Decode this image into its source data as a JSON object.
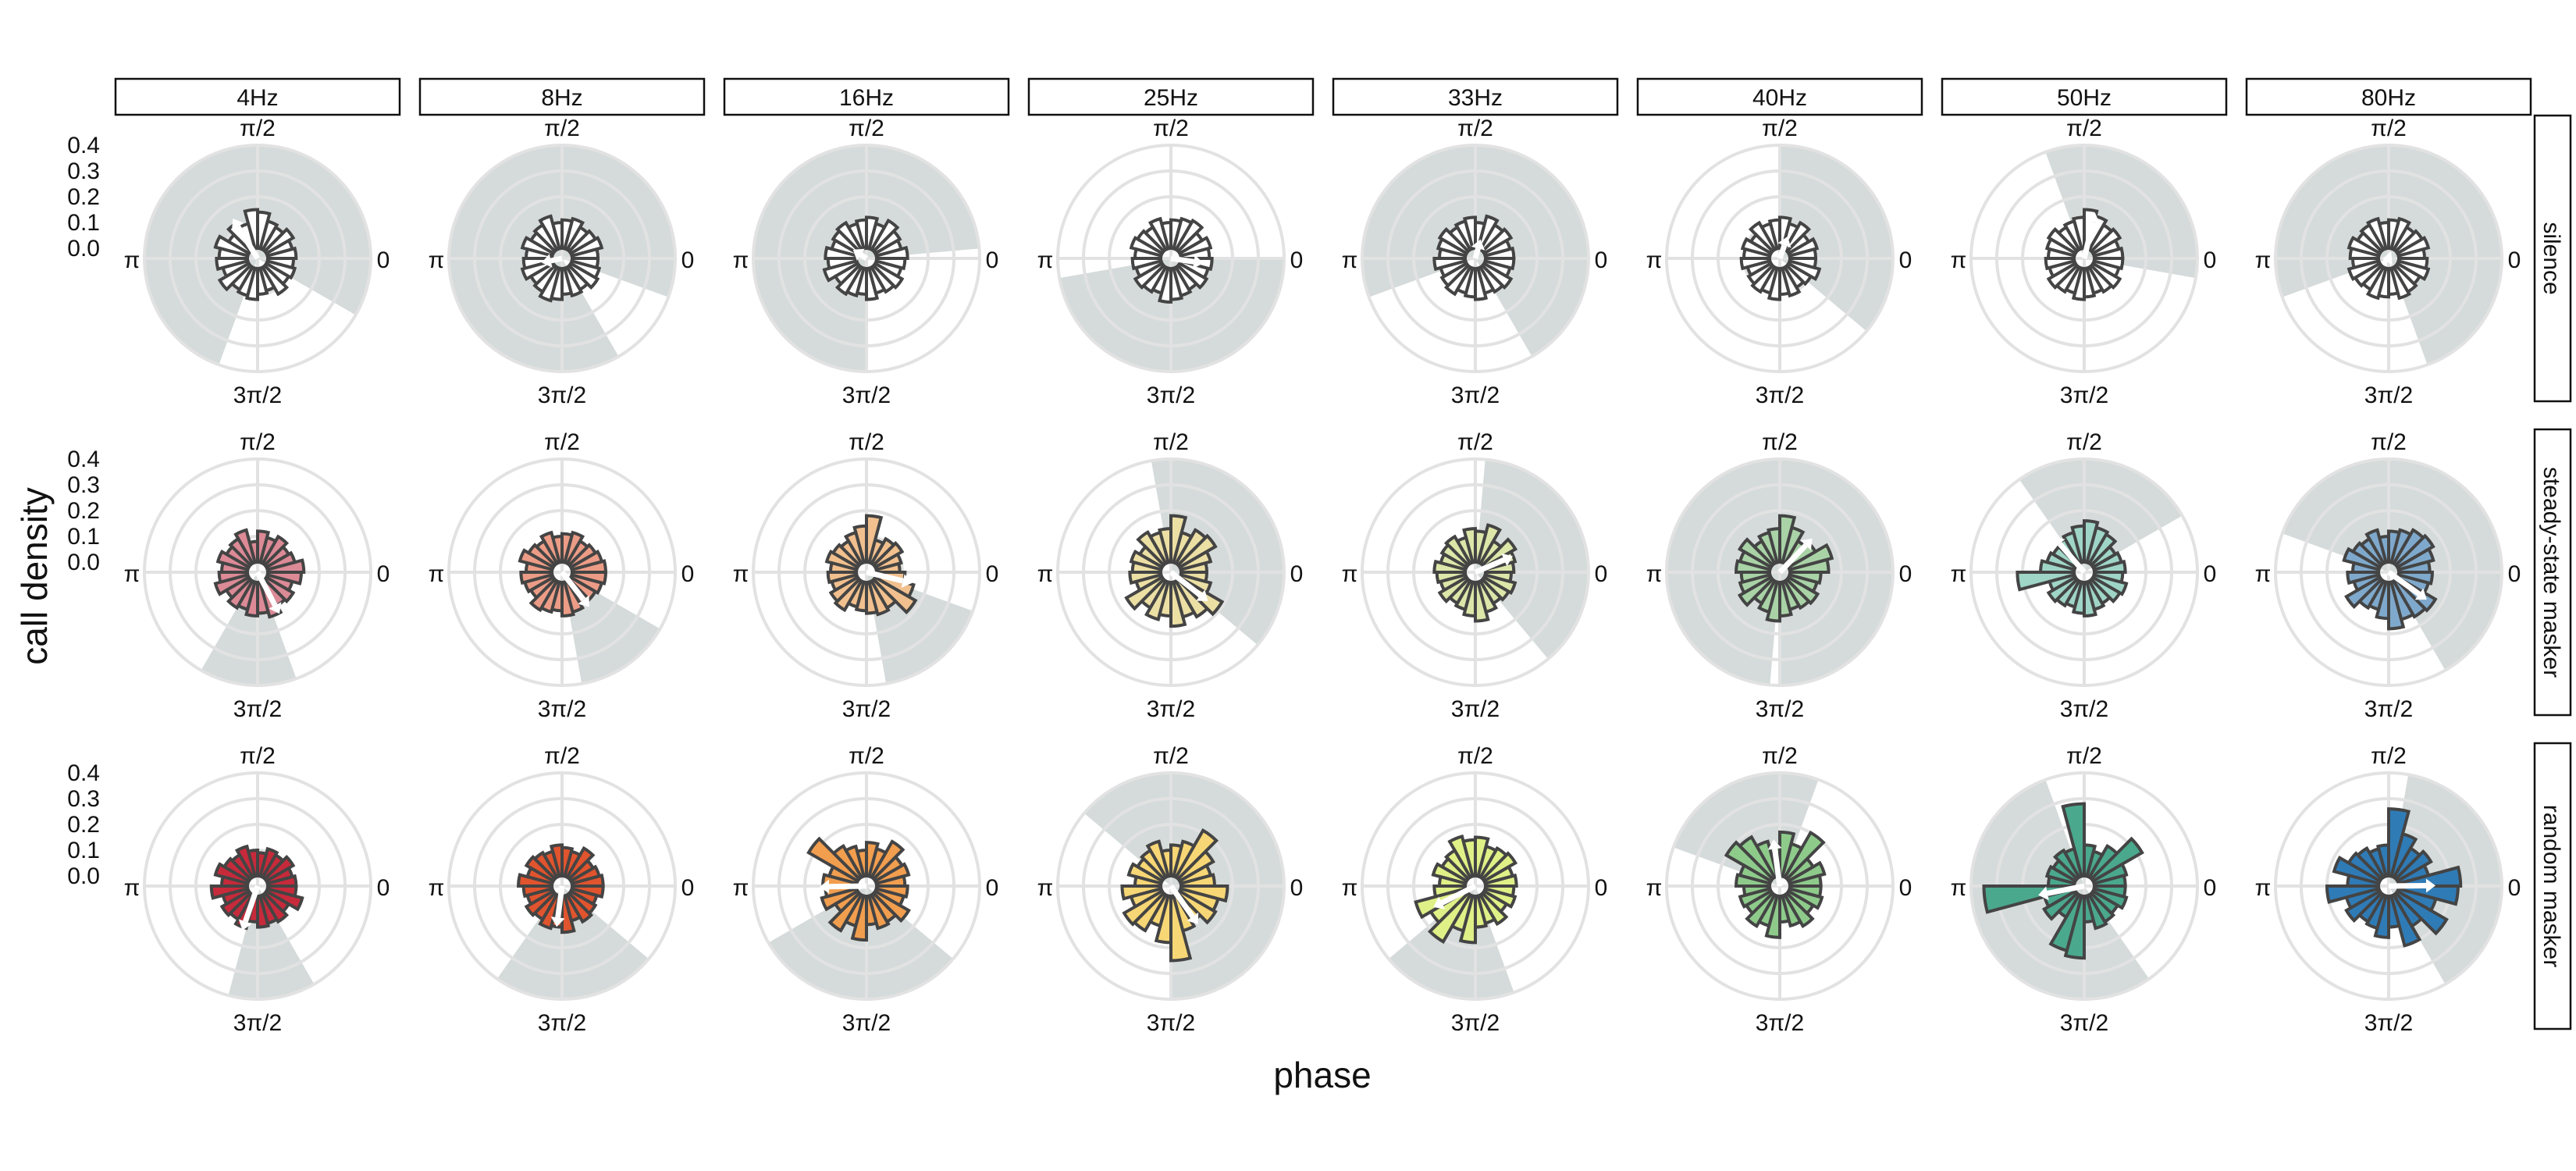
{
  "figure": {
    "xlabel": "phase",
    "ylabel": "call density",
    "columns": [
      "4Hz",
      "8Hz",
      "16Hz",
      "25Hz",
      "33Hz",
      "40Hz",
      "50Hz",
      "80Hz"
    ],
    "rows": [
      "silence",
      "steady-state masker",
      "random masker"
    ],
    "theta_tick_labels": [
      "0",
      "π/2",
      "π",
      "3π/2"
    ],
    "r_tick_labels": [
      "0.0",
      "0.1",
      "0.2",
      "0.3",
      "0.4"
    ],
    "colors": {
      "bar_edge": "#444444",
      "silence_fill": "#ffffff",
      "shade": "#d5dbda",
      "grid": "#e2e2e2",
      "vector": "#ffffff",
      "steady_state_masker": [
        "#dc8a96",
        "#ec9c86",
        "#f1c08e",
        "#ecdfa4",
        "#dde6a9",
        "#a9d3a6",
        "#9fd5c6",
        "#7fa9cc"
      ],
      "random_masker": [
        "#c72a3b",
        "#e0542e",
        "#f19e4f",
        "#f7d675",
        "#dff087",
        "#8ecb8b",
        "#4aa88d",
        "#2f7bb6"
      ]
    }
  },
  "chart_data": {
    "type": "polar-histogram",
    "bins": 24,
    "rlim": [
      0,
      0.4
    ],
    "rticks": [
      0.0,
      0.1,
      0.2,
      0.3,
      0.4
    ],
    "grid": true,
    "note_units": "bar values are call density per phase bin; shaded wedge spans are phase angles in degrees (0 = right, counter-clockwise)",
    "panels": [
      {
        "row": "silence",
        "col": "4Hz",
        "values": [
          0.11,
          0.1,
          0.12,
          0.1,
          0.11,
          0.14,
          0.15,
          0.1,
          0.12,
          0.09,
          0.13,
          0.11,
          0.12,
          0.1,
          0.13,
          0.1,
          0.11,
          0.12,
          0.1,
          0.09,
          0.12,
          0.1,
          0.11,
          0.1
        ],
        "shade": [
          -30,
          250
        ]
      },
      {
        "row": "silence",
        "col": "8Hz",
        "values": [
          0.1,
          0.12,
          0.11,
          0.1,
          0.12,
          0.11,
          0.1,
          0.13,
          0.11,
          0.1,
          0.12,
          0.1,
          0.11,
          0.12,
          0.1,
          0.11,
          0.13,
          0.12,
          0.1,
          0.11,
          0.1,
          0.12,
          0.11,
          0.1
        ],
        "shade": [
          -20,
          300
        ]
      },
      {
        "row": "silence",
        "col": "16Hz",
        "values": [
          0.12,
          0.1,
          0.11,
          0.13,
          0.1,
          0.12,
          0.11,
          0.1,
          0.12,
          0.11,
          0.1,
          0.12,
          0.11,
          0.13,
          0.1,
          0.12,
          0.11,
          0.1,
          0.12,
          0.1,
          0.11,
          0.12,
          0.1,
          0.11
        ],
        "shade": [
          5,
          270
        ]
      },
      {
        "row": "silence",
        "col": "25Hz",
        "values": [
          0.11,
          0.12,
          0.1,
          0.13,
          0.12,
          0.11,
          0.1,
          0.12,
          0.1,
          0.11,
          0.12,
          0.1,
          0.11,
          0.1,
          0.12,
          0.11,
          0.1,
          0.13,
          0.12,
          0.11,
          0.1,
          0.12,
          0.11,
          0.12
        ],
        "shade": [
          190,
          360
        ]
      },
      {
        "row": "silence",
        "col": "33Hz",
        "values": [
          0.11,
          0.1,
          0.12,
          0.11,
          0.13,
          0.1,
          0.12,
          0.11,
          0.1,
          0.12,
          0.11,
          0.1,
          0.12,
          0.1,
          0.11,
          0.12,
          0.1,
          0.11,
          0.12,
          0.1,
          0.11,
          0.12,
          0.1,
          0.11
        ],
        "shade": [
          -60,
          200
        ]
      },
      {
        "row": "silence",
        "col": "40Hz",
        "values": [
          0.1,
          0.11,
          0.09,
          0.12,
          0.1,
          0.12,
          0.11,
          0.1,
          0.12,
          0.09,
          0.11,
          0.1,
          0.11,
          0.09,
          0.1,
          0.11,
          0.1,
          0.12,
          0.1,
          0.11,
          0.09,
          0.1,
          0.12,
          0.1
        ],
        "shade": [
          -40,
          90
        ]
      },
      {
        "row": "silence",
        "col": "50Hz",
        "values": [
          0.11,
          0.1,
          0.12,
          0.11,
          0.13,
          0.15,
          0.12,
          0.11,
          0.1,
          0.12,
          0.11,
          0.1,
          0.11,
          0.1,
          0.12,
          0.11,
          0.1,
          0.12,
          0.11,
          0.1,
          0.11,
          0.12,
          0.1,
          0.11
        ],
        "shade": [
          -10,
          110
        ]
      },
      {
        "row": "silence",
        "col": "80Hz",
        "values": [
          0.1,
          0.12,
          0.11,
          0.1,
          0.12,
          0.11,
          0.1,
          0.12,
          0.11,
          0.1,
          0.12,
          0.11,
          0.1,
          0.12,
          0.11,
          0.1,
          0.12,
          0.11,
          0.1,
          0.12,
          0.11,
          0.1,
          0.12,
          0.11
        ],
        "shade": [
          -70,
          200
        ]
      },
      {
        "row": "steady-state masker",
        "col": "4Hz",
        "values": [
          0.14,
          0.11,
          0.1,
          0.12,
          0.1,
          0.12,
          0.08,
          0.13,
          0.11,
          0.1,
          0.12,
          0.1,
          0.11,
          0.13,
          0.1,
          0.12,
          0.11,
          0.13,
          0.12,
          0.14,
          0.11,
          0.12,
          0.1,
          0.13
        ],
        "shade": [
          240,
          290
        ]
      },
      {
        "row": "steady-state masker",
        "col": "8Hz",
        "values": [
          0.13,
          0.12,
          0.11,
          0.1,
          0.12,
          0.11,
          0.1,
          0.12,
          0.1,
          0.11,
          0.13,
          0.1,
          0.12,
          0.11,
          0.1,
          0.13,
          0.12,
          0.11,
          0.13,
          0.12,
          0.1,
          0.11,
          0.12,
          0.13
        ],
        "shade": [
          280,
          330
        ]
      },
      {
        "row": "steady-state masker",
        "col": "16Hz",
        "values": [
          0.09,
          0.1,
          0.12,
          0.11,
          0.09,
          0.18,
          0.14,
          0.12,
          0.1,
          0.11,
          0.12,
          0.1,
          0.11,
          0.1,
          0.12,
          0.13,
          0.1,
          0.11,
          0.12,
          0.13,
          0.12,
          0.18,
          0.15,
          0.11
        ],
        "shade": [
          280,
          340
        ]
      },
      {
        "row": "steady-state masker",
        "col": "25Hz",
        "values": [
          0.1,
          0.12,
          0.16,
          0.15,
          0.12,
          0.18,
          0.13,
          0.12,
          0.14,
          0.1,
          0.12,
          0.11,
          0.12,
          0.1,
          0.16,
          0.12,
          0.15,
          0.13,
          0.17,
          0.14,
          0.16,
          0.19,
          0.12,
          0.1
        ],
        "shade": [
          -40,
          100
        ]
      },
      {
        "row": "steady-state masker",
        "col": "33Hz",
        "values": [
          0.11,
          0.12,
          0.14,
          0.1,
          0.15,
          0.12,
          0.13,
          0.1,
          0.12,
          0.11,
          0.1,
          0.12,
          0.11,
          0.1,
          0.12,
          0.1,
          0.11,
          0.13,
          0.15,
          0.12,
          0.1,
          0.11,
          0.12,
          0.1
        ],
        "shade": [
          -50,
          85
        ]
      },
      {
        "row": "steady-state masker",
        "col": "40Hz",
        "values": [
          0.15,
          0.17,
          0.12,
          0.1,
          0.14,
          0.18,
          0.13,
          0.12,
          0.1,
          0.14,
          0.12,
          0.13,
          0.11,
          0.12,
          0.14,
          0.1,
          0.12,
          0.15,
          0.13,
          0.11,
          0.12,
          0.13,
          0.11,
          0.12
        ],
        "shade": [
          -90,
          265
        ]
      },
      {
        "row": "steady-state masker",
        "col": "50Hz",
        "values": [
          0.12,
          0.11,
          0.1,
          0.13,
          0.14,
          0.16,
          0.14,
          0.12,
          0.11,
          0.1,
          0.11,
          0.13,
          0.22,
          0.1,
          0.12,
          0.11,
          0.1,
          0.12,
          0.13,
          0.11,
          0.1,
          0.12,
          0.13,
          0.11
        ],
        "shade": [
          30,
          125
        ]
      },
      {
        "row": "steady-state masker",
        "col": "80Hz",
        "values": [
          0.12,
          0.14,
          0.16,
          0.15,
          0.13,
          0.12,
          0.1,
          0.13,
          0.11,
          0.12,
          0.14,
          0.1,
          0.12,
          0.1,
          0.15,
          0.12,
          0.11,
          0.14,
          0.18,
          0.15,
          0.16,
          0.17,
          0.12,
          0.13
        ],
        "shade": [
          -60,
          160
        ]
      },
      {
        "row": "random masker",
        "col": "4Hz",
        "values": [
          0.11,
          0.1,
          0.12,
          0.1,
          0.11,
          0.09,
          0.1,
          0.12,
          0.1,
          0.11,
          0.13,
          0.1,
          0.14,
          0.1,
          0.12,
          0.11,
          0.13,
          0.1,
          0.12,
          0.11,
          0.12,
          0.1,
          0.14,
          0.11
        ],
        "shade": [
          255,
          300
        ]
      },
      {
        "row": "random masker",
        "col": "8Hz",
        "values": [
          0.12,
          0.11,
          0.1,
          0.13,
          0.1,
          0.11,
          0.12,
          0.1,
          0.11,
          0.12,
          0.1,
          0.13,
          0.11,
          0.1,
          0.12,
          0.11,
          0.13,
          0.12,
          0.14,
          0.1,
          0.12,
          0.11,
          0.1,
          0.12
        ],
        "shade": [
          235,
          320
        ]
      },
      {
        "row": "random masker",
        "col": "16Hz",
        "values": [
          0.11,
          0.13,
          0.12,
          0.16,
          0.11,
          0.13,
          0.1,
          0.12,
          0.14,
          0.22,
          0.11,
          0.13,
          0.12,
          0.14,
          0.1,
          0.16,
          0.12,
          0.17,
          0.11,
          0.13,
          0.12,
          0.15,
          0.11,
          0.12
        ],
        "shade": [
          210,
          320
        ]
      },
      {
        "row": "random masker",
        "col": "25Hz",
        "values": [
          0.13,
          0.12,
          0.15,
          0.21,
          0.14,
          0.12,
          0.1,
          0.14,
          0.12,
          0.11,
          0.13,
          0.1,
          0.15,
          0.12,
          0.17,
          0.16,
          0.12,
          0.18,
          0.25,
          0.14,
          0.12,
          0.16,
          0.15,
          0.18
        ],
        "shade": [
          -90,
          140
        ]
      },
      {
        "row": "random masker",
        "col": "33Hz",
        "values": [
          0.12,
          0.11,
          0.14,
          0.13,
          0.12,
          0.15,
          0.14,
          0.16,
          0.12,
          0.11,
          0.13,
          0.1,
          0.12,
          0.2,
          0.16,
          0.21,
          0.14,
          0.18,
          0.12,
          0.11,
          0.13,
          0.1,
          0.12,
          0.11
        ],
        "shade": [
          220,
          290
        ]
      },
      {
        "row": "random masker",
        "col": "40Hz",
        "values": [
          0.12,
          0.14,
          0.11,
          0.2,
          0.13,
          0.17,
          0.12,
          0.14,
          0.18,
          0.2,
          0.12,
          0.13,
          0.1,
          0.12,
          0.11,
          0.14,
          0.12,
          0.16,
          0.1,
          0.12,
          0.14,
          0.11,
          0.13,
          0.12
        ],
        "shade": [
          70,
          160
        ]
      },
      {
        "row": "random masker",
        "col": "50Hz",
        "values": [
          0.12,
          0.13,
          0.22,
          0.14,
          0.1,
          0.12,
          0.28,
          0.11,
          0.12,
          0.1,
          0.11,
          0.1,
          0.35,
          0.12,
          0.14,
          0.1,
          0.22,
          0.24,
          0.1,
          0.13,
          0.12,
          0.11,
          0.13,
          0.12
        ],
        "shade": [
          110,
          305
        ]
      },
      {
        "row": "random masker",
        "col": "80Hz",
        "values": [
          0.24,
          0.12,
          0.15,
          0.13,
          0.17,
          0.26,
          0.12,
          0.11,
          0.13,
          0.14,
          0.18,
          0.12,
          0.2,
          0.13,
          0.15,
          0.12,
          0.13,
          0.16,
          0.12,
          0.2,
          0.14,
          0.22,
          0.15,
          0.23
        ],
        "shade": [
          -60,
          80
        ]
      }
    ]
  }
}
